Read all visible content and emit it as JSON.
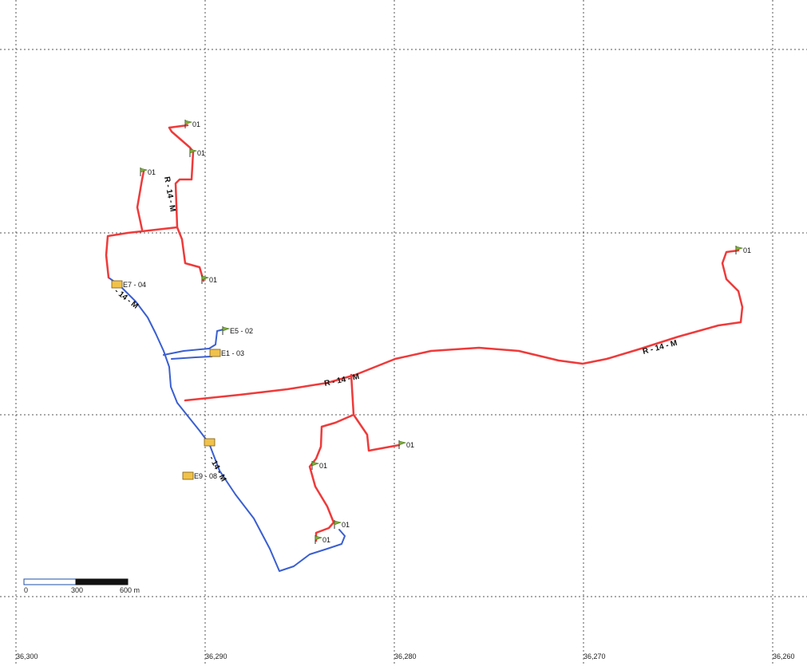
{
  "colors": {
    "red_route": "#ef3a3a",
    "blue_route": "#3a5fd0",
    "grid": "#555555",
    "station_fill": "#f1c24a",
    "flag_fill": "#7fae3a"
  },
  "routes": {
    "red_labels": [
      "R - 14 - M",
      "R - 14 - M",
      "R - 14 - M"
    ],
    "blue_labels": [
      "- 14 - M",
      "- 14 - M"
    ]
  },
  "stations": [
    {
      "icon": "substation-icon",
      "label": "E7 - 04"
    },
    {
      "icon": "substation-icon",
      "label": "E1 - 03"
    },
    {
      "icon": "substation-icon",
      "label": ""
    },
    {
      "icon": "substation-icon",
      "label": "E9 - 08"
    }
  ],
  "endpoints": [
    {
      "icon": "flag-icon",
      "label": "01"
    },
    {
      "icon": "flag-icon",
      "label": "01"
    },
    {
      "icon": "flag-icon",
      "label": "01"
    },
    {
      "icon": "flag-icon",
      "label": "01"
    },
    {
      "icon": "flag-icon",
      "label": "E5 - 02"
    },
    {
      "icon": "flag-icon",
      "label": "01"
    },
    {
      "icon": "flag-icon",
      "label": "01"
    },
    {
      "icon": "flag-icon",
      "label": "01"
    },
    {
      "icon": "flag-icon",
      "label": "01"
    },
    {
      "icon": "flag-icon",
      "label": "01"
    }
  ],
  "x_axis_labels": [
    "36,300",
    "36,290",
    "36,280",
    "36,270",
    "36,260"
  ],
  "scale_bar": {
    "labels": [
      "0",
      "300",
      "600 m"
    ]
  }
}
